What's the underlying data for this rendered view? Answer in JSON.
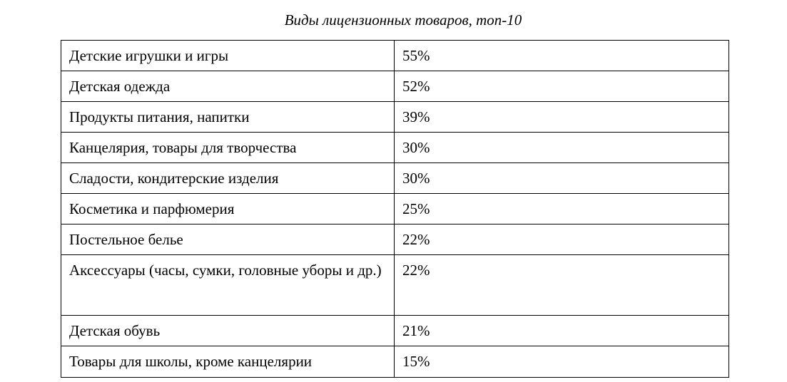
{
  "caption": "Виды лицензионных товаров, топ-10",
  "rows": [
    {
      "name": "Детские игрушки и игры",
      "value": "55%"
    },
    {
      "name": "Детская одежда",
      "value": "52%"
    },
    {
      "name": "Продукты питания, напитки",
      "value": "39%"
    },
    {
      "name": "Канцелярия, товары для творчества",
      "value": "30%"
    },
    {
      "name": "Сладости, кондитерские изделия",
      "value": "30%"
    },
    {
      "name": "Косметика и парфюмерия",
      "value": "25%"
    },
    {
      "name": "Постельное белье",
      "value": "22%"
    },
    {
      "name": "Аксессуары (часы, сумки, головные уборы и др.)",
      "value": "22%"
    },
    {
      "name": "Детская обувь",
      "value": "21%"
    },
    {
      "name": "Товары для школы, кроме канцелярии",
      "value": "15%"
    }
  ]
}
